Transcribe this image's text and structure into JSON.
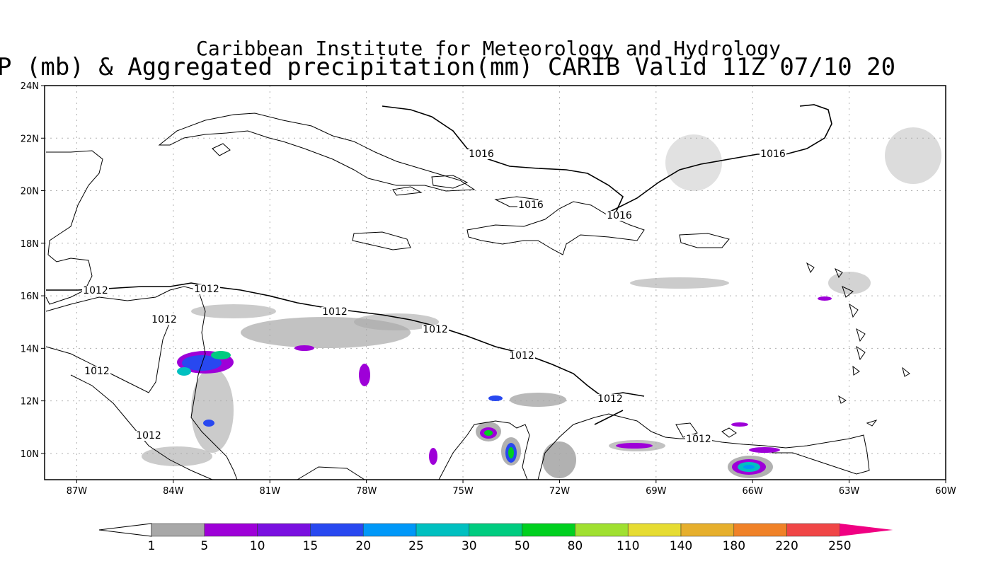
{
  "header": {
    "line1": "Caribbean Institute for Meteorology and Hydrology",
    "line2": "P (mb) & Aggregated precipitation(mm) CARIB Valid 11Z 07/10 20"
  },
  "map": {
    "lon_range": [
      -88,
      -60
    ],
    "lat_range": [
      9,
      24
    ],
    "x_ticks": [
      "87W",
      "84W",
      "81W",
      "78W",
      "75W",
      "72W",
      "69W",
      "66W",
      "63W",
      "60W"
    ],
    "y_ticks": [
      "24N",
      "22N",
      "20N",
      "18N",
      "16N",
      "14N",
      "12N",
      "10N"
    ],
    "grid": "dotted",
    "isobar_labels": [
      "1016",
      "1016",
      "1016",
      "1016",
      "1012",
      "1012",
      "1012",
      "1012",
      "1012",
      "1012",
      "1012",
      "1012",
      "1012",
      "1012"
    ]
  },
  "colorbar": {
    "labels": [
      "1",
      "5",
      "10",
      "15",
      "20",
      "25",
      "30",
      "50",
      "80",
      "110",
      "140",
      "180",
      "220",
      "250"
    ],
    "colors": [
      "#a8a8a8",
      "#9e00d8",
      "#7a10e0",
      "#2848f0",
      "#0098f8",
      "#00c0c0",
      "#00cc80",
      "#00d020",
      "#a0e030",
      "#e6dc32",
      "#e6af2d",
      "#f08228",
      "#f04646",
      "#f00082"
    ]
  }
}
